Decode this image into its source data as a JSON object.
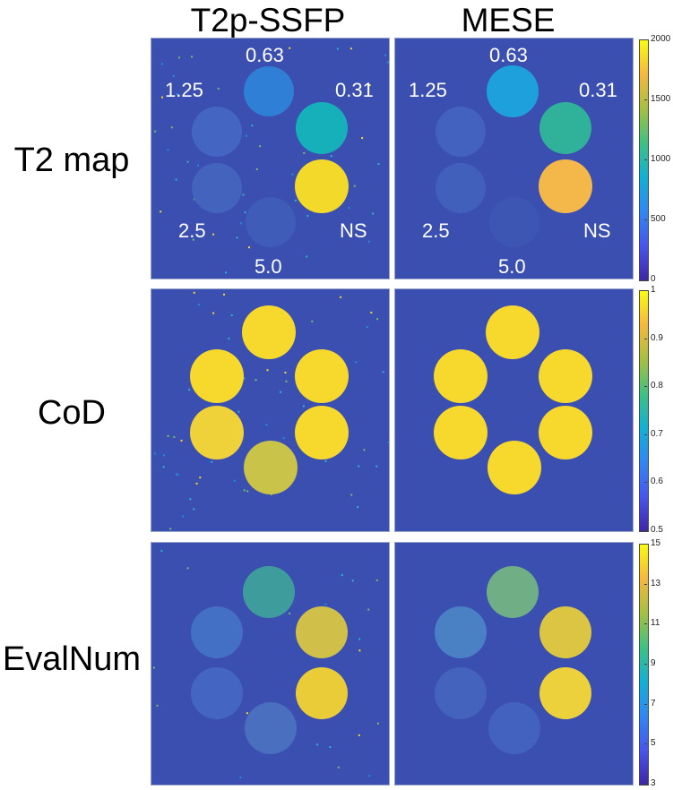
{
  "columns": [
    "T2p-SSFP",
    "MESE"
  ],
  "rows": [
    {
      "label": "T2 map",
      "colorbar": {
        "ticks": [
          "2000",
          "1500",
          "1000",
          "500",
          "0"
        ]
      }
    },
    {
      "label": "CoD",
      "colorbar": {
        "ticks": [
          "1",
          "0.9",
          "0.8",
          "0.7",
          "0.6",
          "0.5"
        ]
      }
    },
    {
      "label": "EvalNum",
      "colorbar": {
        "ticks": [
          "15",
          "13",
          "11",
          "9",
          "7",
          "5",
          "3"
        ]
      }
    }
  ],
  "vial_labels": {
    "top": "0.63",
    "upper_left": "1.25",
    "upper_right": "0.31",
    "lower_left": "2.5",
    "lower_right": "NS",
    "bottom": "5.0"
  },
  "colors": {
    "background": "#3b4fb0",
    "colormap": [
      "#3e26a8",
      "#4755f1",
      "#2e87f7",
      "#10b1d8",
      "#3cc283",
      "#a6c03f",
      "#f6b73c",
      "#f9fb0e"
    ]
  }
}
